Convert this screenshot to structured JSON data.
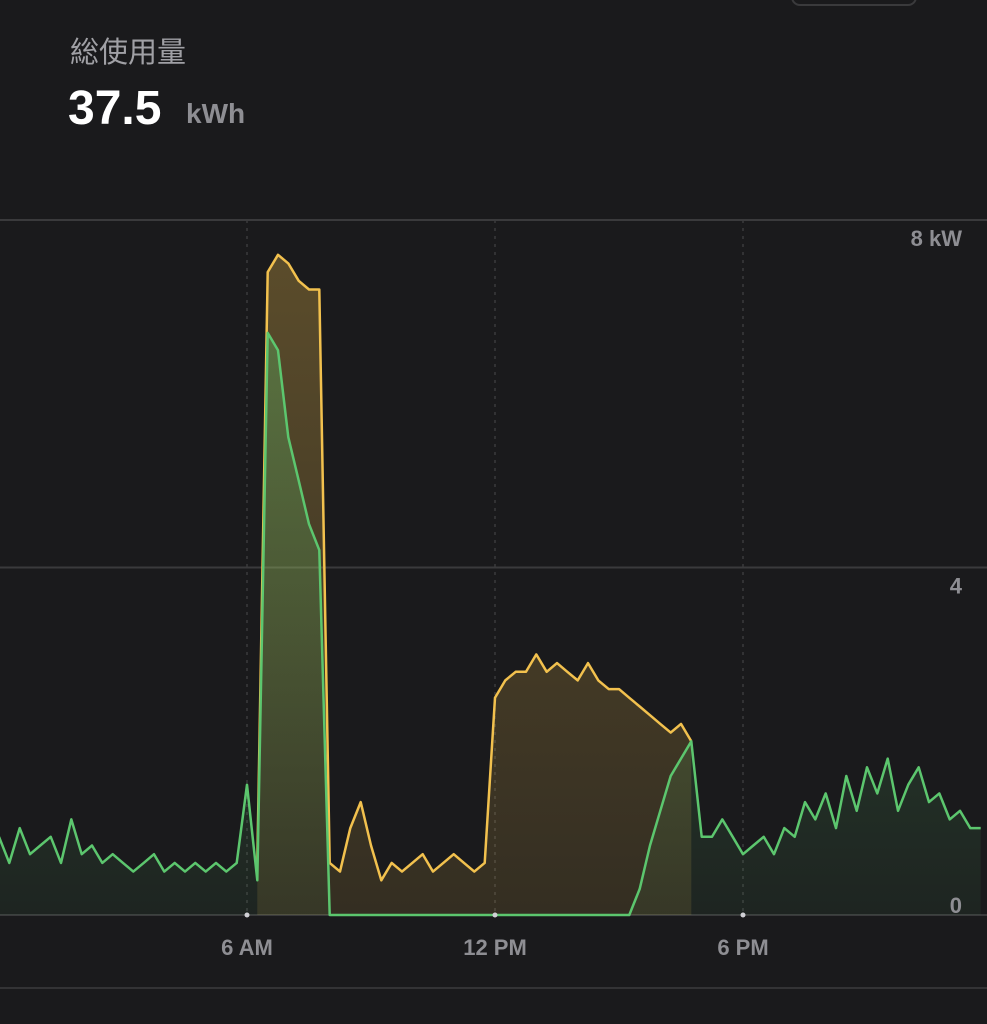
{
  "chart_data": {
    "type": "area",
    "title": "総使用量",
    "total": 37.5,
    "total_unit": "kWh",
    "x": [
      0,
      0.25,
      0.5,
      0.75,
      1,
      1.25,
      1.5,
      1.75,
      2,
      2.25,
      2.5,
      2.75,
      3,
      3.25,
      3.5,
      3.75,
      4,
      4.25,
      4.5,
      4.75,
      5,
      5.25,
      5.5,
      5.75,
      6,
      6.25,
      6.5,
      6.75,
      7,
      7.25,
      7.5,
      7.75,
      8,
      8.25,
      8.5,
      8.75,
      9,
      9.25,
      9.5,
      9.75,
      10,
      10.25,
      10.5,
      10.75,
      11,
      11.25,
      11.5,
      11.75,
      12,
      12.25,
      12.5,
      12.75,
      13,
      13.25,
      13.5,
      13.75,
      14,
      14.25,
      14.5,
      14.75,
      15,
      15.25,
      15.5,
      15.75,
      16,
      16.25,
      16.5,
      16.75,
      17,
      17.25,
      17.5,
      17.75,
      18,
      18.25,
      18.5,
      18.75,
      19,
      19.25,
      19.5,
      19.75,
      20,
      20.25,
      20.5,
      20.75,
      21,
      21.25,
      21.5,
      21.75,
      22,
      22.25,
      22.5,
      22.75,
      23,
      23.25,
      23.5,
      23.75
    ],
    "series": [
      {
        "color": "#f2c14e",
        "values": [
          null,
          null,
          null,
          null,
          null,
          null,
          null,
          null,
          null,
          null,
          null,
          null,
          null,
          null,
          null,
          null,
          null,
          null,
          null,
          null,
          null,
          null,
          null,
          null,
          null,
          0.6,
          7.4,
          7.6,
          7.5,
          7.3,
          7.2,
          7.2,
          0.6,
          0.5,
          1.0,
          1.3,
          0.8,
          0.4,
          0.6,
          0.5,
          0.6,
          0.7,
          0.5,
          0.6,
          0.7,
          0.6,
          0.5,
          0.6,
          2.5,
          2.7,
          2.8,
          2.8,
          3.0,
          2.8,
          2.9,
          2.8,
          2.7,
          2.9,
          2.7,
          2.6,
          2.6,
          2.5,
          2.4,
          2.3,
          2.2,
          2.1,
          2.2,
          2.0,
          null,
          null,
          null,
          null,
          null,
          null,
          null,
          null,
          null,
          null,
          null,
          null,
          null,
          null,
          null,
          null,
          null,
          null,
          null,
          null,
          null,
          null,
          null,
          null,
          null,
          null,
          null,
          null
        ]
      },
      {
        "color": "#5cc66e",
        "values": [
          0.9,
          0.6,
          1.0,
          0.7,
          0.8,
          0.9,
          0.6,
          1.1,
          0.7,
          0.8,
          0.6,
          0.7,
          0.6,
          0.5,
          0.6,
          0.7,
          0.5,
          0.6,
          0.5,
          0.6,
          0.5,
          0.6,
          0.5,
          0.6,
          1.5,
          0.4,
          6.7,
          6.5,
          5.5,
          5.0,
          4.5,
          4.2,
          0,
          0,
          0,
          0,
          0,
          0,
          0,
          0,
          0,
          0,
          0,
          0,
          0,
          0,
          0,
          0,
          0,
          0,
          0,
          0,
          0,
          0,
          0,
          0,
          0,
          0,
          0,
          0,
          0,
          0,
          0.3,
          0.8,
          1.2,
          1.6,
          1.8,
          2.0,
          0.9,
          0.9,
          1.1,
          0.9,
          0.7,
          0.8,
          0.9,
          0.7,
          1.0,
          0.9,
          1.3,
          1.1,
          1.4,
          1.0,
          1.6,
          1.2,
          1.7,
          1.4,
          1.8,
          1.2,
          1.5,
          1.7,
          1.3,
          1.4,
          1.1,
          1.2,
          1.0,
          1.0
        ]
      }
    ],
    "xlim": [
      0,
      24
    ],
    "xticks": [
      {
        "value": 6,
        "label": "6 AM"
      },
      {
        "value": 12,
        "label": "12 PM"
      },
      {
        "value": 18,
        "label": "6 PM"
      }
    ],
    "ylim": [
      0,
      8
    ],
    "yticks": [
      0,
      4,
      {
        "value": 8,
        "label": "8 kW"
      }
    ],
    "grid": true
  }
}
